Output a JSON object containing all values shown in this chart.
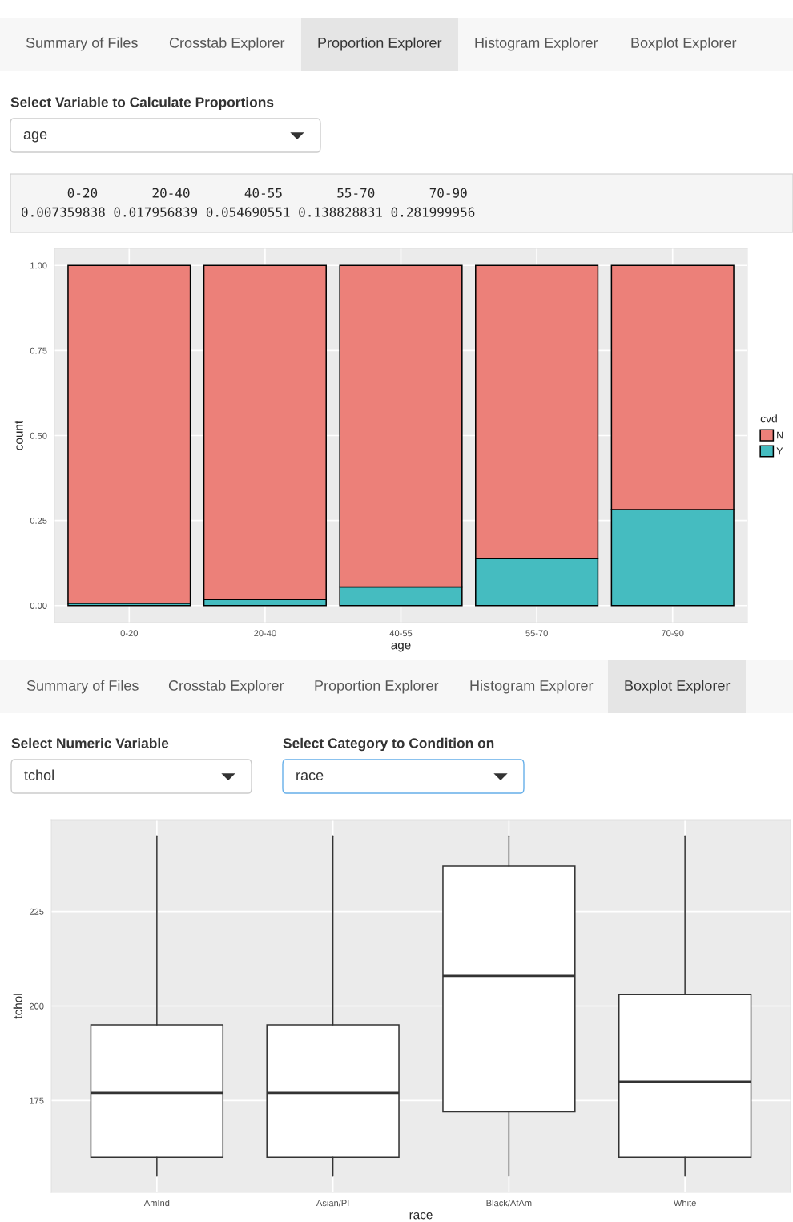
{
  "chart_data": [
    {
      "type": "bar",
      "stacked": true,
      "categories": [
        "0-20",
        "20-40",
        "40-55",
        "55-70",
        "70-90"
      ],
      "series": [
        {
          "name": "Y",
          "color": "#45bcc0",
          "values": [
            0.007,
            0.018,
            0.055,
            0.139,
            0.282
          ]
        },
        {
          "name": "N",
          "color": "#ec8079",
          "values": [
            0.993,
            0.982,
            0.945,
            0.861,
            0.718
          ]
        }
      ],
      "xlabel": "age",
      "ylabel": "count",
      "legend_title": "cvd",
      "legend": "right",
      "ylim": [
        -0.05,
        1.05
      ],
      "yticks": [
        {
          "value": 0,
          "label": "0.00"
        },
        {
          "value": 0.25,
          "label": "0.25"
        },
        {
          "value": 0.5,
          "label": "0.50"
        },
        {
          "value": 0.75,
          "label": "0.75"
        },
        {
          "value": 1,
          "label": "1.00"
        }
      ],
      "grid": true,
      "annotations": [
        "Summary of Files",
        "Crosstab Explorer",
        "Proportion Explorer",
        "Histogram Explorer",
        "Boxplot Explorer",
        "Select Variable to Calculate Proportions",
        "age",
        "      0-20       20-40       40-55       55-70       70-90",
        "0.007359838 0.017956839 0.054690551 0.138828831 0.281999956"
      ]
    },
    {
      "type": "box",
      "categories": [
        "AmInd",
        "Asian/PI",
        "Black/AfAm",
        "White"
      ],
      "boxes": [
        {
          "low": 155,
          "q1": 160,
          "median": 177,
          "q3": 195,
          "high": 245
        },
        {
          "low": 155,
          "q1": 160,
          "median": 177,
          "q3": 195,
          "high": 245
        },
        {
          "low": 155,
          "q1": 172,
          "median": 208,
          "q3": 237,
          "high": 245
        },
        {
          "low": 155,
          "q1": 160,
          "median": 180,
          "q3": 203,
          "high": 245
        }
      ],
      "xlabel": "race",
      "ylabel": "tchol",
      "ylim": [
        150.7,
        249.3
      ],
      "yticks": [
        175,
        200,
        225
      ],
      "grid": true,
      "annotations": [
        "Summary of Files",
        "Crosstab Explorer",
        "Proportion Explorer",
        "Histogram Explorer",
        "Boxplot Explorer",
        "Select Numeric Variable",
        "tchol",
        "Select Category to Condition on",
        "race"
      ]
    }
  ]
}
